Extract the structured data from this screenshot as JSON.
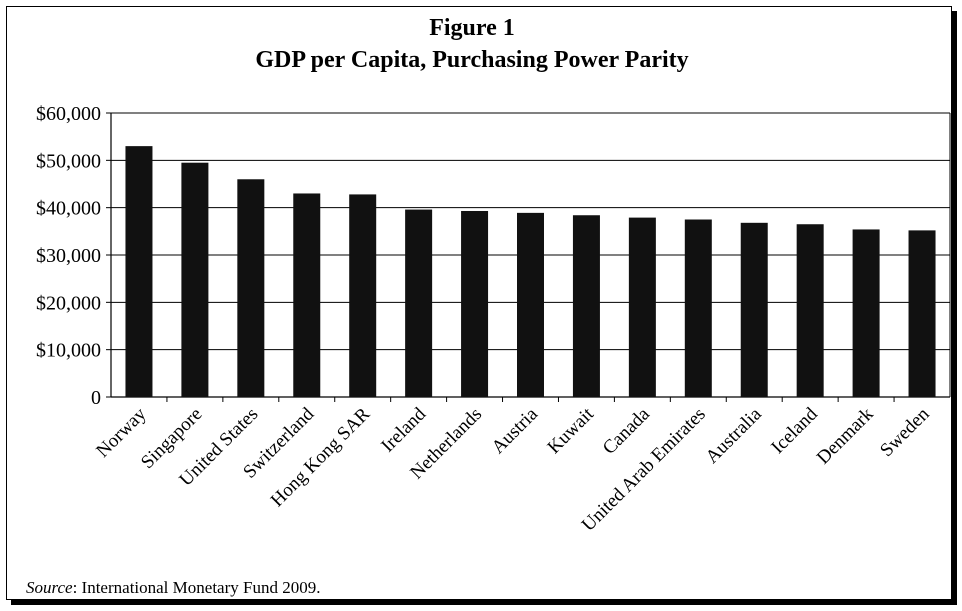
{
  "title": "Figure 1",
  "subtitle": "GDP per Capita, Purchasing Power Parity",
  "source_label": "Source",
  "source_text": ": International Monetary Fund 2009.",
  "chart_data": {
    "type": "bar",
    "categories": [
      "Norway",
      "Singapore",
      "United States",
      "Switzerland",
      "Hong Kong SAR",
      "Ireland",
      "Netherlands",
      "Austria",
      "Kuwait",
      "Canada",
      "United Arab Emirates",
      "Australia",
      "Iceland",
      "Denmark",
      "Sweden"
    ],
    "values": [
      53000,
      49500,
      46000,
      43000,
      42800,
      39600,
      39300,
      38900,
      38400,
      37900,
      37500,
      36800,
      36500,
      35400,
      35200
    ],
    "ylim": [
      0,
      60000
    ],
    "yticks": [
      0,
      10000,
      20000,
      30000,
      40000,
      50000,
      60000
    ],
    "ytick_labels": [
      "0",
      "$10,000",
      "$20,000",
      "$30,000",
      "$40,000",
      "$50,000",
      "$60,000"
    ],
    "grid": true,
    "bar_color": "#111111"
  }
}
